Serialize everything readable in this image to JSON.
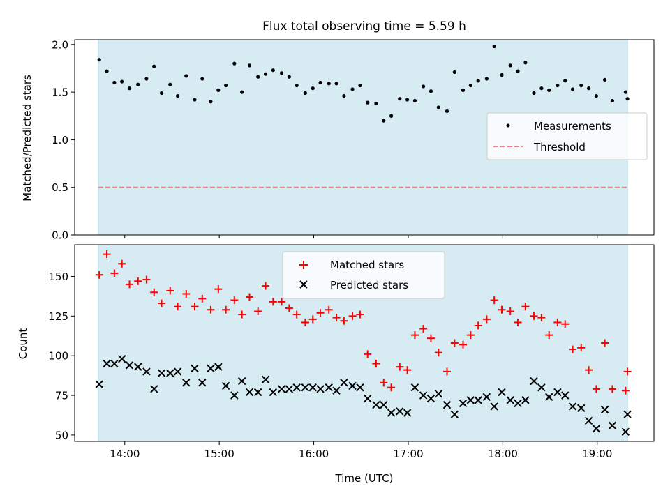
{
  "title": "Flux total observing time = 5.59 h",
  "xlabel": "Time (UTC)",
  "colors": {
    "observing_band": "#add8e6",
    "measurements": "#000000",
    "threshold": "#f08080",
    "matched": "#ff0000",
    "predicted": "#000000"
  },
  "chart_data": [
    {
      "type": "scatter",
      "ylabel": "Matched/Predicted stars",
      "xlim": [
        13.47,
        19.6
      ],
      "ylim": [
        0,
        2.05
      ],
      "x_ticks": [
        "14:00",
        "15:00",
        "16:00",
        "17:00",
        "18:00",
        "19:00"
      ],
      "y_ticks": [
        "0.0",
        "0.5",
        "1.0",
        "1.5",
        "2.0"
      ],
      "observing_window": [
        13.72,
        19.32
      ],
      "threshold": 0.5,
      "legend": {
        "position": "center-right",
        "entries": [
          "Measurements",
          "Threshold"
        ]
      },
      "series": [
        {
          "name": "Measurements",
          "x": [
            13.73,
            13.81,
            13.89,
            13.97,
            14.05,
            14.14,
            14.23,
            14.31,
            14.39,
            14.48,
            14.56,
            14.65,
            14.74,
            14.82,
            14.91,
            14.99,
            15.07,
            15.16,
            15.24,
            15.32,
            15.41,
            15.49,
            15.57,
            15.66,
            15.74,
            15.82,
            15.91,
            15.99,
            16.07,
            16.16,
            16.24,
            16.32,
            16.41,
            16.49,
            16.57,
            16.66,
            16.74,
            16.82,
            16.91,
            16.99,
            17.07,
            17.16,
            17.24,
            17.32,
            17.41,
            17.49,
            17.58,
            17.66,
            17.74,
            17.83,
            17.91,
            17.99,
            18.08,
            18.16,
            18.24,
            18.33,
            18.41,
            18.49,
            18.58,
            18.66,
            18.74,
            18.83,
            18.91,
            18.99,
            19.08,
            19.16,
            19.3,
            19.32
          ],
          "y": [
            1.84,
            1.72,
            1.6,
            1.61,
            1.54,
            1.58,
            1.64,
            1.77,
            1.49,
            1.58,
            1.46,
            1.67,
            1.42,
            1.64,
            1.4,
            1.52,
            1.57,
            1.8,
            1.5,
            1.78,
            1.66,
            1.69,
            1.73,
            1.7,
            1.66,
            1.57,
            1.49,
            1.54,
            1.6,
            1.59,
            1.59,
            1.46,
            1.53,
            1.57,
            1.39,
            1.38,
            1.2,
            1.25,
            1.43,
            1.42,
            1.41,
            1.56,
            1.51,
            1.34,
            1.3,
            1.71,
            1.52,
            1.57,
            1.62,
            1.64,
            1.98,
            1.68,
            1.78,
            1.72,
            1.81,
            1.49,
            1.54,
            1.52,
            1.57,
            1.62,
            1.53,
            1.57,
            1.54,
            1.46,
            1.63,
            1.41,
            1.5,
            1.43
          ]
        }
      ]
    },
    {
      "type": "scatter",
      "ylabel": "Count",
      "xlabel": "Time (UTC)",
      "xlim": [
        13.47,
        19.6
      ],
      "ylim": [
        46,
        170
      ],
      "x_ticks": [
        "14:00",
        "15:00",
        "16:00",
        "17:00",
        "18:00",
        "19:00"
      ],
      "y_ticks": [
        "50",
        "75",
        "100",
        "125",
        "150"
      ],
      "observing_window": [
        13.72,
        19.32
      ],
      "legend": {
        "position": "upper-center",
        "entries": [
          "Matched stars",
          "Predicted stars"
        ]
      },
      "series": [
        {
          "name": "Matched stars",
          "marker": "+",
          "x": [
            13.73,
            13.81,
            13.89,
            13.97,
            14.05,
            14.14,
            14.23,
            14.31,
            14.39,
            14.48,
            14.56,
            14.65,
            14.74,
            14.82,
            14.91,
            14.99,
            15.07,
            15.16,
            15.24,
            15.32,
            15.41,
            15.49,
            15.57,
            15.66,
            15.74,
            15.82,
            15.91,
            15.99,
            16.07,
            16.16,
            16.24,
            16.32,
            16.41,
            16.49,
            16.57,
            16.66,
            16.74,
            16.82,
            16.91,
            16.99,
            17.07,
            17.16,
            17.24,
            17.32,
            17.41,
            17.49,
            17.58,
            17.66,
            17.74,
            17.83,
            17.91,
            17.99,
            18.08,
            18.16,
            18.24,
            18.33,
            18.41,
            18.49,
            18.58,
            18.66,
            18.74,
            18.83,
            18.91,
            18.99,
            19.08,
            19.16,
            19.3,
            19.32
          ],
          "y": [
            151,
            164,
            152,
            158,
            145,
            147,
            148,
            140,
            133,
            141,
            131,
            139,
            131,
            136,
            129,
            142,
            129,
            135,
            126,
            137,
            128,
            144,
            134,
            134,
            130,
            126,
            121,
            123,
            127,
            129,
            124,
            122,
            125,
            126,
            101,
            95,
            83,
            80,
            93,
            91,
            113,
            117,
            111,
            102,
            90,
            108,
            107,
            113,
            119,
            123,
            135,
            129,
            128,
            121,
            131,
            125,
            124,
            113,
            121,
            120,
            104,
            105,
            91,
            79,
            108,
            79,
            78,
            90
          ]
        },
        {
          "name": "Predicted stars",
          "marker": "x",
          "x": [
            13.73,
            13.81,
            13.89,
            13.97,
            14.05,
            14.14,
            14.23,
            14.31,
            14.39,
            14.48,
            14.56,
            14.65,
            14.74,
            14.82,
            14.91,
            14.99,
            15.07,
            15.16,
            15.24,
            15.32,
            15.41,
            15.49,
            15.57,
            15.66,
            15.74,
            15.82,
            15.91,
            15.99,
            16.07,
            16.16,
            16.24,
            16.32,
            16.41,
            16.49,
            16.57,
            16.66,
            16.74,
            16.82,
            16.91,
            16.99,
            17.07,
            17.16,
            17.24,
            17.32,
            17.41,
            17.49,
            17.58,
            17.66,
            17.74,
            17.83,
            17.91,
            17.99,
            18.08,
            18.16,
            18.24,
            18.33,
            18.41,
            18.49,
            18.58,
            18.66,
            18.74,
            18.83,
            18.91,
            18.99,
            19.08,
            19.16,
            19.3,
            19.32
          ],
          "y": [
            82,
            95,
            95,
            98,
            94,
            93,
            90,
            79,
            89,
            89,
            90,
            83,
            92,
            83,
            92,
            93,
            81,
            75,
            84,
            77,
            77,
            85,
            77,
            79,
            79,
            80,
            80,
            80,
            79,
            80,
            78,
            83,
            81,
            80,
            73,
            69,
            69,
            64,
            65,
            64,
            80,
            75,
            73,
            76,
            69,
            63,
            70,
            72,
            72,
            74,
            68,
            77,
            72,
            70,
            72,
            84,
            80,
            74,
            77,
            75,
            68,
            67,
            59,
            54,
            66,
            56,
            52,
            63
          ]
        }
      ]
    }
  ]
}
